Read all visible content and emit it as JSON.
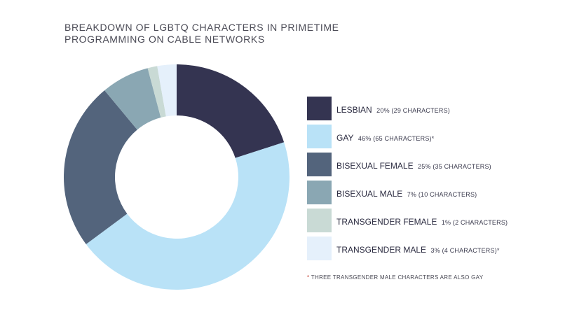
{
  "chart_data": {
    "type": "pie",
    "title_line1": "BREAKDOWN OF LGBTQ CHARACTERS IN PRIMETIME",
    "title_line2": "PROGRAMMING ON CABLE NETWORKS",
    "slices": [
      {
        "label": "LESBIAN",
        "percent": 20,
        "detail": "20% (29 CHARACTERS)",
        "value": 29,
        "color": "#343451"
      },
      {
        "label": "GAY",
        "percent": 46,
        "detail": "46% (65 CHARACTERS)*",
        "value": 65,
        "color": "#b9e2f7"
      },
      {
        "label": "BISEXUAL FEMALE",
        "percent": 25,
        "detail": "25% (35 CHARACTERS)",
        "value": 35,
        "color": "#53647c"
      },
      {
        "label": "BISEXUAL MALE",
        "percent": 7,
        "detail": "7% (10 CHARACTERS)",
        "value": 10,
        "color": "#8aa7b3"
      },
      {
        "label": "TRANSGENDER FEMALE",
        "percent": 1,
        "detail": "1% (2 CHARACTERS)",
        "value": 2,
        "color": "#c9dad5"
      },
      {
        "label": "TRANSGENDER MALE",
        "percent": 3,
        "detail": "3% (4 CHARACTERS)*",
        "value": 4,
        "color": "#e5f0fb"
      }
    ],
    "footnote_star": "*",
    "footnote_text": " THREE TRANSGENDER MALE CHARACTERS ARE ALSO GAY"
  }
}
